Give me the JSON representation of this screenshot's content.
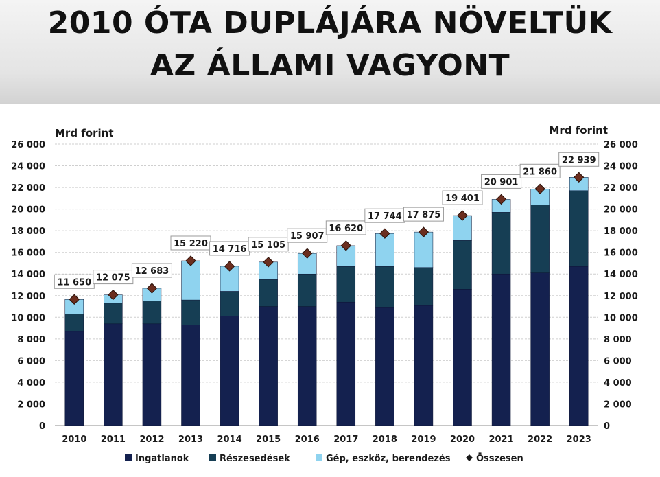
{
  "header": {
    "line1": "2010 ÓTA DUPLÁJÁRA NÖVELTÜK",
    "line2": "AZ ÁLLAMI VAGYONT"
  },
  "chart_data": {
    "type": "bar",
    "stacked": true,
    "left_unit": "Mrd forint",
    "right_unit": "Mrd forint",
    "ylim": [
      0,
      26000
    ],
    "yticks": [
      "0",
      "2 000",
      "4 000",
      "6 000",
      "8 000",
      "10 000",
      "12 000",
      "14 000",
      "16 000",
      "18 000",
      "20 000",
      "22 000",
      "24 000",
      "26 000"
    ],
    "categories": [
      "2010",
      "2011",
      "2012",
      "2013",
      "2014",
      "2015",
      "2016",
      "2017",
      "2018",
      "2019",
      "2020",
      "2021",
      "2022",
      "2023"
    ],
    "series": [
      {
        "name": "Ingatlanok",
        "color": "#14214f",
        "values": [
          8700,
          9400,
          9400,
          9300,
          10100,
          11000,
          11000,
          11400,
          10900,
          11100,
          12600,
          14000,
          14100,
          14700
        ]
      },
      {
        "name": "Részesedések",
        "color": "#163e54",
        "values": [
          1600,
          1900,
          2100,
          2300,
          2300,
          2500,
          3000,
          3300,
          3800,
          3500,
          4500,
          5700,
          6300,
          7000
        ]
      },
      {
        "name": "Gép, eszköz, berendezés",
        "color": "#8fd3ef",
        "values": [
          1350,
          775,
          1183,
          3620,
          2316,
          1605,
          1907,
          1920,
          3044,
          3275,
          2301,
          1201,
          1460,
          1239
        ]
      }
    ],
    "total": {
      "name": "Összesen",
      "color": "#6b2e1f",
      "values": [
        11650,
        12075,
        12683,
        15220,
        14716,
        15105,
        15907,
        16620,
        17744,
        17875,
        19401,
        20901,
        21860,
        22939
      ],
      "labels": [
        "11 650",
        "12 075",
        "12 683",
        "15 220",
        "14 716",
        "15 105",
        "15 907",
        "16 620",
        "17 744",
        "17 875",
        "19 401",
        "20 901",
        "21 860",
        "22 939"
      ]
    },
    "grid": true,
    "legend_position": "bottom"
  }
}
